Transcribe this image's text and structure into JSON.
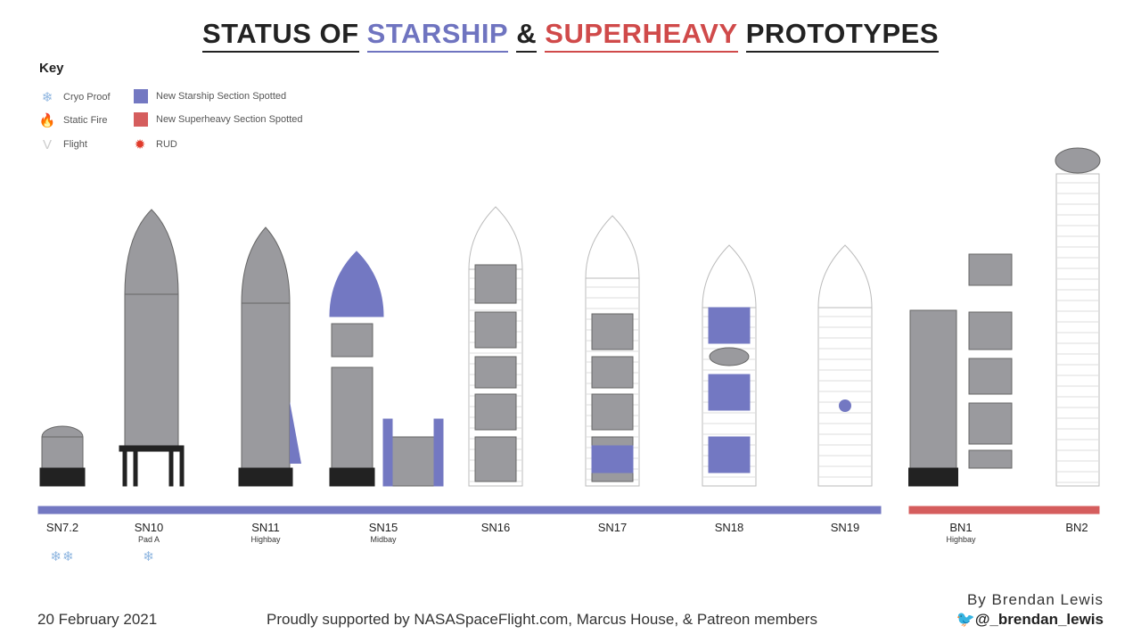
{
  "title": {
    "part1": "STATUS OF",
    "starship": "STARSHIP",
    "amp": "&",
    "superheavy": "SUPERHEAVY",
    "part2": "PROTOTYPES"
  },
  "colors": {
    "starship": "#7378c2",
    "superheavy": "#d55d5d",
    "steel": "#9a9a9e"
  },
  "key": {
    "title": "Key",
    "items": [
      {
        "icon": "snowflake-icon",
        "label": "Cryo Proof"
      },
      {
        "icon": "fire-icon",
        "label": "Static Fire"
      },
      {
        "icon": "flight-icon",
        "label": "Flight"
      },
      {
        "icon": "starship-swatch",
        "label": "New Starship Section Spotted"
      },
      {
        "icon": "superheavy-swatch",
        "label": "New Superheavy Section Spotted"
      },
      {
        "icon": "explosion-icon",
        "label": "RUD"
      }
    ]
  },
  "vehicles": [
    {
      "name": "SN7.2",
      "location": "",
      "cryo_proofs": 2,
      "cryo": "❄❄"
    },
    {
      "name": "SN10",
      "location": "Pad A",
      "cryo_proofs": 1,
      "cryo": "❄"
    },
    {
      "name": "SN11",
      "location": "Highbay",
      "cryo_proofs": 0
    },
    {
      "name": "SN15",
      "location": "Midbay",
      "cryo_proofs": 0
    },
    {
      "name": "SN16",
      "location": "",
      "cryo_proofs": 0
    },
    {
      "name": "SN17",
      "location": "",
      "cryo_proofs": 0
    },
    {
      "name": "SN18",
      "location": "",
      "cryo_proofs": 0
    },
    {
      "name": "SN19",
      "location": "",
      "cryo_proofs": 0
    },
    {
      "name": "BN1",
      "location": "Highbay",
      "cryo_proofs": 0
    },
    {
      "name": "BN2",
      "location": "",
      "cryo_proofs": 0
    }
  ],
  "footer": {
    "date": "20 February 2021",
    "support": "Proudly supported by NASASpaceFlight.com, Marcus House, & Patreon members",
    "author": "By Brendan Lewis",
    "handle": "@_brendan_lewis"
  }
}
